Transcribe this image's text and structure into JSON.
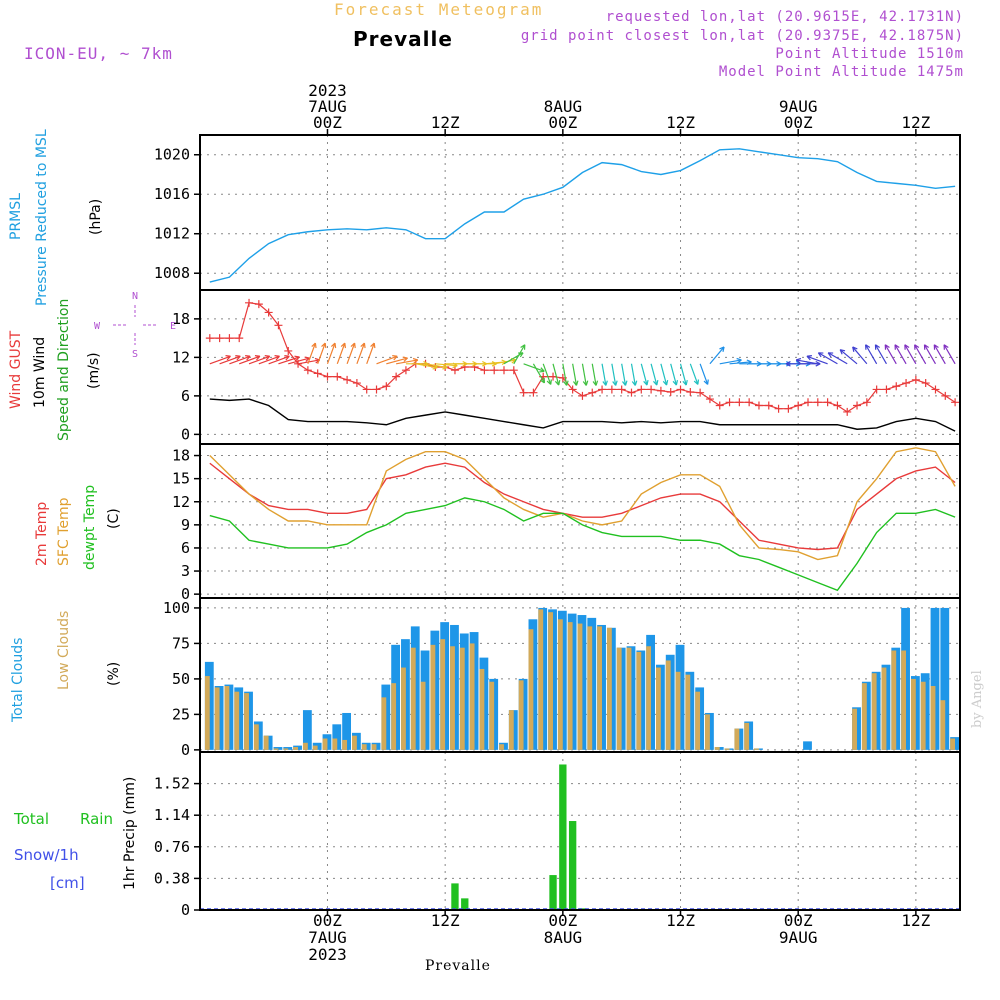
{
  "header": {
    "subtitle": "Forecast Meteogram",
    "location": "Prevalle",
    "model": "ICON-EU, ~ 7km",
    "requested": "requested lon,lat (20.9615E, 42.1731N)",
    "grid_point": "grid point closest lon,lat (20.9375E, 42.1875N)",
    "point_altitude": "Point Altitude 1510m",
    "model_altitude": "Model Point Altitude 1475m"
  },
  "footer": {
    "location": "Prevalle",
    "credit": "by Angel"
  },
  "time_axis": {
    "top_labels": [
      {
        "hour": 0,
        "lines": [
          "2023",
          "7AUG",
          "00Z"
        ]
      },
      {
        "hour": 12,
        "lines": [
          "12Z"
        ]
      },
      {
        "hour": 24,
        "lines": [
          "8AUG",
          "00Z"
        ]
      },
      {
        "hour": 36,
        "lines": [
          "12Z"
        ]
      },
      {
        "hour": 48,
        "lines": [
          "9AUG",
          "00Z"
        ]
      },
      {
        "hour": 60,
        "lines": [
          "12Z"
        ]
      }
    ],
    "bottom_labels": [
      {
        "hour": 0,
        "lines": [
          "00Z",
          "7AUG",
          "2023"
        ]
      },
      {
        "hour": 12,
        "lines": [
          "12Z"
        ]
      },
      {
        "hour": 24,
        "lines": [
          "00Z",
          "8AUG"
        ]
      },
      {
        "hour": 36,
        "lines": [
          "12Z"
        ]
      },
      {
        "hour": 48,
        "lines": [
          "00Z",
          "9AUG"
        ]
      },
      {
        "hour": 60,
        "lines": [
          "12Z"
        ]
      }
    ]
  },
  "panels": {
    "pressure": {
      "labels": [
        "PRMSL",
        "Pressure Reduced to MSL"
      ],
      "unit": "(hPa)"
    },
    "wind": {
      "labels": [
        "Wind GUST",
        "10m Wind",
        "Speed and Direction"
      ],
      "unit": "(m/s)",
      "compass": [
        "N",
        "S",
        "W",
        "E"
      ]
    },
    "temp": {
      "labels": [
        "2m Temp",
        "SFC Temp",
        "dewpt Temp"
      ],
      "unit": "(C)"
    },
    "clouds": {
      "labels": [
        "Total Clouds",
        "Low Clouds"
      ],
      "unit": "(%)"
    },
    "precip": {
      "labels": [
        "Total",
        "Rain",
        "Snow/1h",
        "[cm]"
      ],
      "unit": "1hr Precip (mm)"
    }
  },
  "colors": {
    "pressure": "#1ea0e8",
    "gust": "#e83a3a",
    "wind10m": "#000000",
    "t2m": "#e83a3a",
    "tsfc": "#e0a030",
    "dewpt": "#20c020",
    "total_clouds": "#1e96e8",
    "low_clouds": "#d2aa5a",
    "rain": "#20c020",
    "snow": "#4050e8",
    "label_cyan": "#20a0e0",
    "label_purple": "#b04fd0"
  },
  "chart_data": [
    {
      "type": "line",
      "title": "PRMSL Pressure Reduced to MSL",
      "ylabel": "(hPa)",
      "ylim": [
        1006.3,
        1022
      ],
      "yticks": [
        1008,
        1012,
        1016,
        1020
      ],
      "x_hours": [
        -12,
        -10,
        -8,
        -6,
        -4,
        -2,
        0,
        2,
        4,
        6,
        8,
        10,
        12,
        14,
        16,
        18,
        20,
        22,
        24,
        26,
        28,
        30,
        32,
        34,
        36,
        38,
        40,
        42,
        44,
        46,
        48,
        50,
        52,
        54,
        56,
        58,
        60,
        62,
        64
      ],
      "series": [
        {
          "values": [
            1007.1,
            1007.6,
            1009.5,
            1011,
            1011.9,
            1012.2,
            1012.4,
            1012.5,
            1012.4,
            1012.6,
            1012.4,
            1011.5,
            1011.5,
            1013,
            1014.2,
            1014.2,
            1015.5,
            1016,
            1016.7,
            1018.2,
            1019.2,
            1019,
            1018.3,
            1018,
            1018.4,
            1019.4,
            1020.5,
            1020.6,
            1020.3,
            1020,
            1019.7,
            1019.6,
            1019.3,
            1018.2,
            1017.3,
            1017.1,
            1016.9,
            1016.6,
            1016.8
          ]
        }
      ]
    },
    {
      "type": "line",
      "title": "Wind GUST / 10m Wind Speed and Direction",
      "ylabel": "(m/s)",
      "ylim": [
        -1.5,
        22.5
      ],
      "yticks": [
        0,
        6,
        12,
        18
      ],
      "gust": {
        "x_hours": [
          -12,
          -11,
          -10,
          -9,
          -8,
          -7,
          -6,
          -5,
          -4,
          -3,
          -2,
          -1,
          0,
          1,
          2,
          3,
          4,
          5,
          6,
          7,
          8,
          9,
          10,
          11,
          12,
          13,
          14,
          15,
          16,
          17,
          18,
          19,
          20,
          21,
          22,
          23,
          24,
          25,
          26,
          27,
          28,
          29,
          30,
          31,
          32,
          33,
          34,
          35,
          36,
          37,
          38,
          39,
          40,
          41,
          42,
          43,
          44,
          45,
          46,
          47,
          48,
          49,
          50,
          51,
          52,
          53,
          54,
          55,
          56,
          57,
          58,
          59,
          60,
          61,
          62,
          63,
          64
        ],
        "values": [
          15,
          15,
          15,
          15,
          20.5,
          20.3,
          19,
          17,
          13,
          11,
          10,
          9.5,
          9,
          9,
          8.5,
          8,
          7,
          7,
          7.5,
          9,
          10,
          11,
          11,
          10.5,
          10.5,
          10,
          10.5,
          10.5,
          10,
          10,
          10,
          10,
          6.5,
          6.5,
          9,
          9,
          8.8,
          7,
          6,
          6.5,
          7,
          7,
          7,
          6.5,
          7,
          7,
          6.8,
          6.6,
          7,
          6.6,
          6.5,
          5.5,
          4.5,
          5,
          5,
          5,
          4.5,
          4.5,
          4,
          4,
          4.5,
          5,
          5,
          5,
          4.5,
          3.5,
          4.5,
          5,
          7,
          7,
          7.5,
          8,
          8.5,
          8,
          7,
          6,
          5
        ]
      },
      "wind10m": {
        "x_hours": [
          -12,
          -10,
          -8,
          -6,
          -4,
          -2,
          0,
          2,
          4,
          6,
          8,
          10,
          12,
          14,
          16,
          18,
          20,
          22,
          24,
          26,
          28,
          30,
          32,
          34,
          36,
          38,
          40,
          42,
          44,
          46,
          48,
          50,
          52,
          54,
          56,
          58,
          60,
          62,
          64
        ],
        "values": [
          5.5,
          5.3,
          5.5,
          4.5,
          2.3,
          2,
          2,
          2,
          1.8,
          1.5,
          2.5,
          3,
          3.5,
          3,
          2.5,
          2,
          1.5,
          1,
          2,
          2,
          2,
          1.8,
          2,
          1.8,
          2,
          2,
          1.5,
          1.5,
          1.5,
          1.5,
          1.5,
          1.5,
          1.5,
          0.8,
          1,
          2,
          2.5,
          2,
          0.5
        ]
      },
      "direction_arrows": {
        "x_hours": [
          -12,
          -11,
          -10,
          -9,
          -8,
          -7,
          -6,
          -5,
          -4,
          -3,
          -2,
          -1,
          0,
          1,
          2,
          3,
          4,
          5,
          6,
          7,
          8,
          9,
          10,
          11,
          12,
          13,
          14,
          15,
          16,
          17,
          18,
          19,
          20,
          21,
          22,
          23,
          24,
          25,
          26,
          27,
          28,
          29,
          30,
          31,
          32,
          33,
          34,
          35,
          36,
          37,
          38,
          39,
          40,
          41,
          42,
          43,
          44,
          45,
          46,
          47,
          48,
          49,
          50,
          51,
          52,
          53,
          54,
          55,
          56,
          57,
          58,
          59,
          60,
          61,
          62,
          63,
          64
        ],
        "wind_to_deg": [
          70,
          70,
          70,
          70,
          70,
          70,
          70,
          72,
          75,
          80,
          20,
          20,
          20,
          20,
          20,
          20,
          20,
          70,
          75,
          80,
          90,
          100,
          100,
          95,
          90,
          90,
          90,
          90,
          85,
          80,
          60,
          30,
          110,
          150,
          160,
          165,
          170,
          170,
          170,
          170,
          170,
          170,
          170,
          170,
          165,
          165,
          165,
          165,
          165,
          160,
          160,
          40,
          80,
          85,
          90,
          90,
          90,
          90,
          90,
          90,
          90,
          270,
          280,
          290,
          300,
          300,
          310,
          320,
          330,
          330,
          330,
          330,
          330,
          330,
          330,
          330,
          330
        ]
      }
    },
    {
      "type": "line",
      "title": "2m Temp / SFC Temp / dewpt Temp",
      "ylabel": "(C)",
      "ylim": [
        -0.5,
        19.5
      ],
      "yticks": [
        0,
        3,
        6,
        9,
        12,
        15,
        18
      ],
      "x_hours": [
        -12,
        -10,
        -8,
        -6,
        -4,
        -2,
        0,
        2,
        4,
        6,
        8,
        10,
        12,
        14,
        16,
        18,
        20,
        22,
        24,
        26,
        28,
        30,
        32,
        34,
        36,
        38,
        40,
        42,
        44,
        46,
        48,
        50,
        52,
        54,
        56,
        58,
        60,
        62,
        64
      ],
      "series": [
        {
          "name": "2m Temp",
          "values": [
            17,
            15,
            13,
            11.5,
            11,
            11,
            10.5,
            10.5,
            11,
            15,
            15.5,
            16.5,
            17,
            16.5,
            14.5,
            13,
            12,
            11,
            10.5,
            10,
            10,
            10.5,
            11.5,
            12.5,
            13,
            13,
            12,
            9.5,
            7,
            6.5,
            6,
            5.8,
            6,
            11,
            13,
            15,
            16,
            16.5,
            14.5
          ]
        },
        {
          "name": "SFC Temp",
          "values": [
            18,
            15.5,
            13,
            11,
            9.5,
            9.5,
            9,
            9,
            9,
            16,
            17.5,
            18.5,
            18.5,
            17.5,
            15,
            12.5,
            11,
            10,
            10.5,
            9.5,
            9,
            9.5,
            13,
            14.5,
            15.5,
            15.5,
            14,
            9,
            6,
            5.8,
            5.5,
            4.5,
            5,
            12,
            15,
            18.5,
            19,
            18.5,
            14
          ]
        },
        {
          "name": "dewpt Temp",
          "values": [
            10.2,
            9.5,
            7,
            6.5,
            6,
            6,
            6,
            6.5,
            8,
            9,
            10.5,
            11,
            11.5,
            12.5,
            12,
            11,
            9.5,
            10.5,
            10.5,
            9,
            8,
            7.5,
            7.5,
            7.5,
            7,
            7,
            6.5,
            5,
            4.5,
            3.5,
            2.5,
            1.5,
            0.5,
            4,
            8,
            10.5,
            10.5,
            11,
            10
          ]
        }
      ]
    },
    {
      "type": "bar",
      "title": "Total Clouds / Low Clouds",
      "ylabel": "(%)",
      "ylim": [
        -1.5,
        107
      ],
      "yticks": [
        0,
        25,
        50,
        75,
        100
      ],
      "x_hours": [
        -12,
        -11,
        -10,
        -9,
        -8,
        -7,
        -6,
        -5,
        -4,
        -3,
        -2,
        -1,
        0,
        1,
        2,
        3,
        4,
        5,
        6,
        7,
        8,
        9,
        10,
        11,
        12,
        13,
        14,
        15,
        16,
        17,
        18,
        19,
        20,
        21,
        22,
        23,
        24,
        25,
        26,
        27,
        28,
        29,
        30,
        31,
        32,
        33,
        34,
        35,
        36,
        37,
        38,
        39,
        40,
        41,
        42,
        43,
        44,
        45,
        46,
        47,
        48,
        49,
        50,
        51,
        52,
        53,
        54,
        55,
        56,
        57,
        58,
        59,
        60,
        61,
        62,
        63,
        64
      ],
      "series": [
        {
          "name": "Total Clouds",
          "values": [
            62,
            45,
            46,
            44,
            41,
            20,
            10,
            2,
            2,
            3,
            28,
            5,
            11,
            18,
            26,
            12,
            5,
            5,
            46,
            74,
            78,
            87,
            70,
            84,
            90,
            88,
            82,
            83,
            65,
            50,
            5,
            28,
            50,
            92,
            100,
            99,
            98,
            96,
            95,
            93,
            88,
            86,
            72,
            73,
            70,
            81,
            60,
            67,
            74,
            55,
            44,
            26,
            2,
            1,
            15,
            20,
            1,
            0,
            0,
            0,
            0,
            6,
            0,
            0,
            0,
            0,
            30,
            48,
            55,
            60,
            72,
            100,
            52,
            54,
            100,
            100,
            9
          ]
        },
        {
          "name": "Low Clouds",
          "values": [
            52,
            44,
            45,
            41,
            40,
            18,
            10,
            1,
            1,
            2,
            5,
            3,
            8,
            8,
            7,
            10,
            4,
            4,
            37,
            47,
            58,
            72,
            48,
            74,
            78,
            73,
            72,
            75,
            57,
            48,
            4,
            28,
            49,
            85,
            99,
            97,
            92,
            90,
            89,
            87,
            87,
            86,
            72,
            72,
            69,
            73,
            58,
            63,
            55,
            53,
            41,
            25,
            2,
            1,
            15,
            19,
            1,
            0,
            0,
            0,
            0,
            0,
            0,
            0,
            0,
            0,
            29,
            47,
            54,
            58,
            70,
            70,
            50,
            48,
            45,
            35,
            8
          ]
        }
      ]
    },
    {
      "type": "bar",
      "title": "Total Rain Snow/1h [cm]",
      "ylabel": "1hr Precip (mm)",
      "ylim": [
        0,
        1.9
      ],
      "yticks": [
        0,
        0.38,
        0.76,
        1.14,
        1.52
      ],
      "x_hours": [
        13,
        14,
        23,
        24,
        25,
        26
      ],
      "series": [
        {
          "name": "Total Rain",
          "values": [
            0.32,
            0.14,
            0.42,
            1.75,
            1.07,
            0.02
          ]
        },
        {
          "name": "Snow/1h",
          "values": [
            0,
            0,
            0,
            0,
            0,
            0
          ]
        }
      ]
    }
  ]
}
